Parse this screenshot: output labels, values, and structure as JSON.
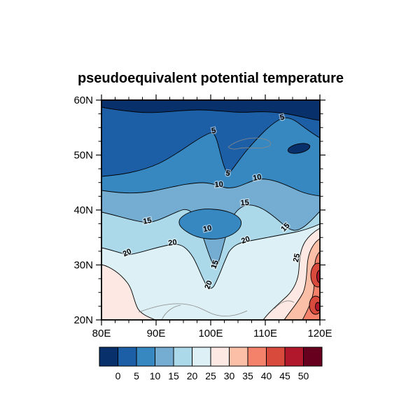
{
  "figure": {
    "background": "#ffffff"
  },
  "chart_data": {
    "type": "heatmap",
    "subtype": "filled_contour_map",
    "title": "pseudoequivalent potential temperature",
    "xlabel": "",
    "ylabel": "",
    "x_ticks": [
      "80E",
      "90E",
      "100E",
      "110E",
      "120E"
    ],
    "y_ticks": [
      "60N",
      "50N",
      "40N",
      "30N",
      "20N"
    ],
    "lon_range": [
      80,
      120
    ],
    "lat_range": [
      20,
      60
    ],
    "grid_on": false,
    "legend_position": "bottom-colorbar",
    "contour_levels": [
      0,
      5,
      10,
      15,
      20,
      25,
      30,
      35,
      40,
      45,
      50
    ],
    "palette": [
      "#08306b",
      "#1d5fa6",
      "#3787c0",
      "#74add1",
      "#abd9e9",
      "#dcf0f5",
      "#fde8e3",
      "#fbbfa7",
      "#f4826a",
      "#d84a3b",
      "#b2182b",
      "#67001f"
    ],
    "colorbar_labels": [
      "0",
      "5",
      "10",
      "15",
      "20",
      "25",
      "30",
      "35",
      "40",
      "45",
      "50"
    ],
    "grid": {
      "lon": [
        80,
        85,
        90,
        95,
        100,
        105,
        110,
        115,
        120
      ],
      "lat": [
        60,
        55,
        50,
        45,
        40,
        35,
        30,
        25,
        20
      ],
      "values": [
        [
          -1,
          -1,
          -1,
          -1,
          -1,
          -1,
          -1,
          -1,
          -2
        ],
        [
          2,
          2,
          2,
          3,
          4,
          3,
          4,
          6,
          3
        ],
        [
          4,
          4,
          4,
          6,
          7,
          5,
          7,
          2,
          7
        ],
        [
          6,
          7,
          8,
          10,
          10,
          8,
          11,
          9,
          8
        ],
        [
          14,
          13,
          13,
          12,
          10,
          16,
          14,
          13,
          15
        ],
        [
          17,
          17,
          18,
          9,
          8,
          11,
          20,
          22,
          33
        ],
        [
          25,
          23,
          21,
          20,
          14,
          21,
          23,
          24,
          41
        ],
        [
          27,
          26,
          22,
          21,
          20,
          22,
          24,
          27,
          38
        ],
        [
          27,
          26,
          25,
          22,
          22,
          23,
          25,
          32,
          37
        ]
      ]
    },
    "contour_line_labels": [
      {
        "text": "5"
      },
      {
        "text": "5"
      },
      {
        "text": "5"
      },
      {
        "text": "10"
      },
      {
        "text": "10"
      },
      {
        "text": "10"
      },
      {
        "text": "15"
      },
      {
        "text": "15"
      },
      {
        "text": "15"
      },
      {
        "text": "15"
      },
      {
        "text": "20"
      },
      {
        "text": "20"
      },
      {
        "text": "20"
      },
      {
        "text": "20"
      },
      {
        "text": "25"
      }
    ]
  }
}
